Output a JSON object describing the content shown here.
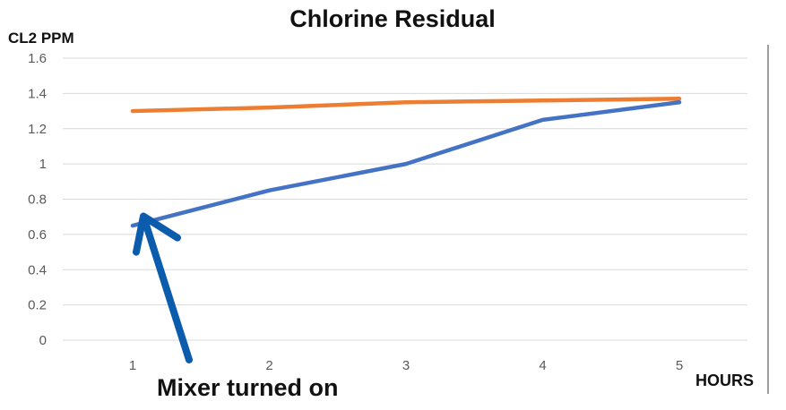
{
  "chart_data": {
    "type": "line",
    "title": "Chlorine Residual",
    "ylabel": "CL2 PPM",
    "xlabel": "HOURS",
    "categories": [
      "1",
      "2",
      "3",
      "4",
      "5"
    ],
    "ylim": [
      0,
      1.6
    ],
    "yticks": [
      "0",
      "0.2",
      "0.4",
      "0.6",
      "0.8",
      "1",
      "1.2",
      "1.4",
      "1.6"
    ],
    "grid": true,
    "series": [
      {
        "values": [
          1.3,
          1.32,
          1.35,
          1.36,
          1.37
        ],
        "color": "#ed7d31"
      },
      {
        "values": [
          0.65,
          0.85,
          1.0,
          1.25,
          1.35
        ],
        "color": "#4472c4"
      }
    ],
    "annotation": {
      "text": "Mixer turned on",
      "target_category": "1",
      "target_value": 0.5,
      "arrow_color": "#0b5cad"
    }
  }
}
